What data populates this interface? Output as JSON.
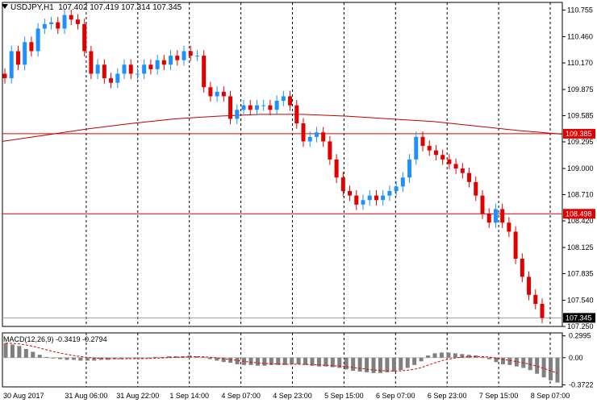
{
  "header": {
    "symbol": "USDJPY,H1",
    "ohlc": "107.402 107.419 107.314 107.345"
  },
  "macd_label": "MACD(12,26,9) -0.3419 -0.2794",
  "colors": {
    "up": "#1e90ff",
    "down": "#e00000",
    "hline": "#e00000",
    "ma": "#c00000",
    "grid": "#000000",
    "histogram": "#808080",
    "signal": "#e00000",
    "price_tag": "#e00000",
    "current_tag": "#000000"
  },
  "chart_data": [
    {
      "type": "candlestick",
      "ylim": [
        107.25,
        110.84
      ],
      "y_ticks": [
        "110.755",
        "110.460",
        "110.170",
        "109.875",
        "109.585",
        "109.295",
        "109.000",
        "108.710",
        "108.420",
        "108.125",
        "107.835",
        "107.540",
        "107.250"
      ],
      "x_ticks": [
        "30 Aug 2017",
        "31 Aug 06:00",
        "31 Aug 22:00",
        "1 Sep 14:00",
        "4 Sep 07:00",
        "4 Sep 23:00",
        "5 Sep 15:00",
        "6 Sep 07:00",
        "6 Sep 23:00",
        "7 Sep 15:00",
        "8 Sep 07:00"
      ],
      "horizontal_lines": [
        {
          "value": 109.385,
          "label": "109.385"
        },
        {
          "value": 108.498,
          "label": "108.498"
        }
      ],
      "current_price": {
        "value": 107.345,
        "label": "107.345"
      },
      "moving_average": [
        109.3,
        109.37,
        109.44,
        109.5,
        109.55,
        109.58,
        109.6,
        109.6,
        109.58,
        109.55,
        109.52,
        109.47,
        109.42,
        109.38
      ],
      "closes": [
        110.0,
        110.3,
        110.15,
        110.4,
        110.3,
        110.55,
        110.6,
        110.62,
        110.55,
        110.7,
        110.65,
        110.6,
        110.3,
        110.05,
        110.15,
        110.0,
        109.95,
        110.05,
        110.15,
        110.05,
        110.05,
        110.15,
        110.1,
        110.2,
        110.15,
        110.25,
        110.2,
        110.3,
        110.25,
        110.25,
        109.9,
        109.8,
        109.85,
        109.8,
        109.55,
        109.65,
        109.7,
        109.65,
        109.7,
        109.7,
        109.65,
        109.75,
        109.8,
        109.7,
        109.5,
        109.3,
        109.35,
        109.4,
        109.3,
        109.1,
        108.9,
        108.75,
        108.7,
        108.6,
        108.65,
        108.7,
        108.65,
        108.7,
        108.75,
        108.8,
        108.9,
        109.1,
        109.35,
        109.25,
        109.2,
        109.15,
        109.1,
        109.05,
        109.0,
        108.95,
        108.85,
        108.7,
        108.5,
        108.4,
        108.55,
        108.4,
        108.3,
        108.0,
        107.8,
        107.6,
        107.5,
        107.345
      ],
      "macd": {
        "ylim": [
          -0.4,
          0.34
        ],
        "y_ticks": [
          "0.2995",
          "0.00",
          "-0.3722"
        ],
        "histogram": [
          0.2,
          0.18,
          0.16,
          0.12,
          0.08,
          0.04,
          0.01,
          -0.01,
          -0.02,
          -0.03,
          -0.03,
          -0.04,
          -0.04,
          -0.04,
          -0.03,
          -0.03,
          -0.02,
          -0.02,
          -0.01,
          -0.01,
          -0.01,
          0.0,
          0.01,
          0.01,
          0.02,
          0.02,
          0.02,
          0.03,
          0.02,
          0.01,
          -0.02,
          -0.04,
          -0.06,
          -0.07,
          -0.09,
          -0.1,
          -0.1,
          -0.11,
          -0.11,
          -0.1,
          -0.1,
          -0.1,
          -0.09,
          -0.09,
          -0.1,
          -0.11,
          -0.12,
          -0.12,
          -0.13,
          -0.14,
          -0.16,
          -0.18,
          -0.19,
          -0.2,
          -0.21,
          -0.21,
          -0.2,
          -0.19,
          -0.17,
          -0.14,
          -0.1,
          -0.05,
          0.03,
          0.06,
          0.07,
          0.07,
          0.06,
          0.05,
          0.04,
          0.03,
          0.01,
          -0.02,
          -0.06,
          -0.09,
          -0.1,
          -0.12,
          -0.14,
          -0.17,
          -0.22,
          -0.27,
          -0.31,
          -0.34
        ]
      }
    }
  ]
}
